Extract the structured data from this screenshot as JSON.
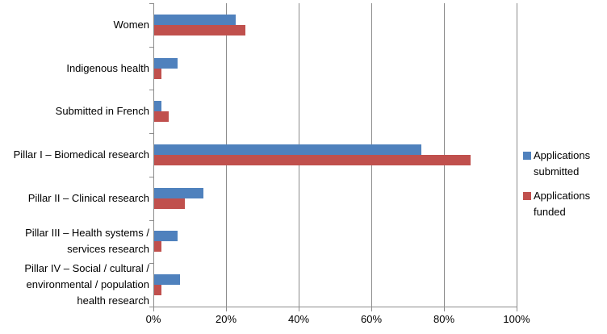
{
  "chart_data": {
    "type": "bar",
    "orientation": "horizontal",
    "title": "",
    "categories": [
      "Women",
      "Indigenous health",
      "Submitted in French",
      "Pillar I – Biomedical research",
      "Pillar II – Clinical research",
      "Pillar III – Health systems / services research",
      "Pillar IV – Social / cultural / environmental / population health research"
    ],
    "category_label_lines": [
      [
        "Women"
      ],
      [
        "Indigenous health"
      ],
      [
        "Submitted in French"
      ],
      [
        "Pillar I – Biomedical research"
      ],
      [
        "Pillar II – Clinical research"
      ],
      [
        "Pillar III – Health systems /",
        "services research"
      ],
      [
        "Pillar IV – Social / cultural /",
        "environmental / population",
        "health research"
      ]
    ],
    "series": [
      {
        "name": "Applications submitted",
        "color": "#4F81BD",
        "values": [
          22.5,
          6.5,
          2,
          73.5,
          13.5,
          6.5,
          7
        ]
      },
      {
        "name": "Applications funded",
        "color": "#C0504D",
        "values": [
          25,
          2,
          4,
          87,
          8.5,
          2,
          2
        ]
      }
    ],
    "xlabel": "",
    "ylabel": "",
    "xlim": [
      0,
      100
    ],
    "x_ticks": [
      "0%",
      "20%",
      "40%",
      "60%",
      "80%",
      "100%"
    ],
    "x_tick_values": [
      0,
      20,
      40,
      60,
      80,
      100
    ],
    "grid": true,
    "legend_position": "right",
    "axis_color": "#8C8C8C",
    "text_color": "#000000",
    "background_color": "#FFFFFF"
  }
}
